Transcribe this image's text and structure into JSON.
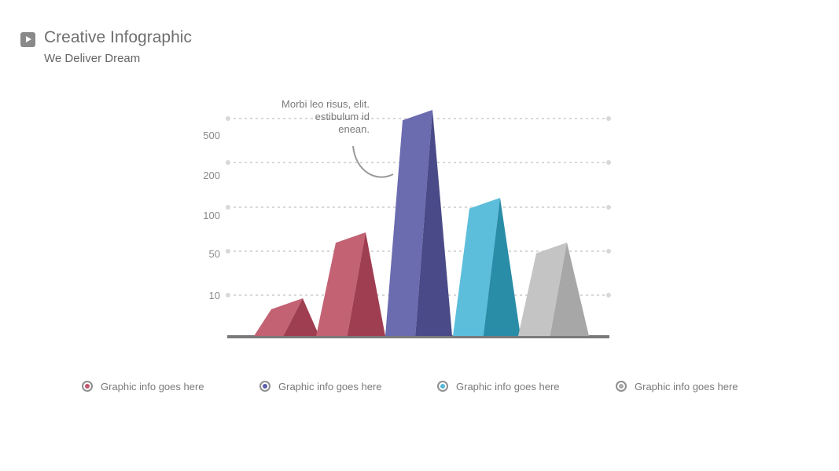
{
  "header": {
    "title": "Creative Infographic",
    "subtitle": "We Deliver Dream"
  },
  "callout": {
    "lines": [
      "Morbi leo risus, elit.",
      "estibulum id",
      "enean."
    ]
  },
  "legend": [
    {
      "label": "Graphic info goes here",
      "color": "#c2566d"
    },
    {
      "label": "Graphic info goes here",
      "color": "#5d5ea8"
    },
    {
      "label": "Graphic info goes here",
      "color": "#56b6d4"
    },
    {
      "label": "Graphic info goes here",
      "color": "#a9a9a9"
    }
  ],
  "colors": {
    "red_light": "#c26273",
    "red_dark": "#a03e51",
    "purple_light": "#6b6bb0",
    "purple_dark": "#4a4a88",
    "blue_light": "#5cbedb",
    "blue_dark": "#2a8da8",
    "gray_light": "#c4c4c4",
    "gray_dark": "#a7a7a7",
    "grid": "#d8d8d8",
    "baseline": "#7a7a7a"
  },
  "chart_data": {
    "type": "bar",
    "title": "",
    "xlabel": "",
    "ylabel": "",
    "y_ticks": [
      "10",
      "50",
      "100",
      "200",
      "500"
    ],
    "grid": true,
    "categories": [
      "",
      "",
      "",
      "",
      ""
    ],
    "values": [
      8,
      60,
      800,
      150,
      40
    ],
    "note": "categorical y-axis; bar heights estimated against tick labels"
  }
}
